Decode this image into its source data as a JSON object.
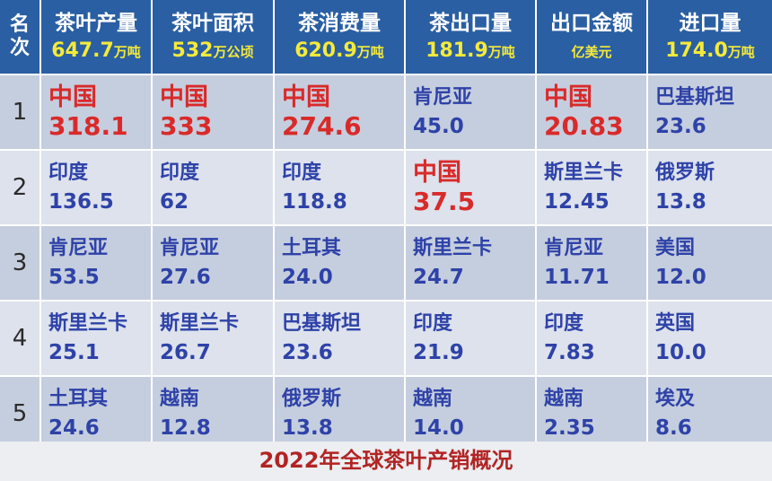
{
  "header": {
    "rank": [
      "名",
      "次"
    ],
    "columns": [
      {
        "name": "茶叶产量",
        "num": "647.7",
        "unit": "万吨"
      },
      {
        "name": "茶叶面积",
        "num": "532",
        "unit": "万公顷"
      },
      {
        "name": "茶消费量",
        "num": "620.9",
        "unit": "万吨"
      },
      {
        "name": "茶出口量",
        "num": "181.9",
        "unit": "万吨"
      },
      {
        "name": "出口金额",
        "num": "",
        "unit": "亿美元"
      },
      {
        "name": "进口量",
        "num": "174.0",
        "unit": "万吨"
      }
    ]
  },
  "rows": [
    {
      "rank": "1",
      "cells": [
        {
          "country": "中国",
          "value": "318.1",
          "highlight": true
        },
        {
          "country": "中国",
          "value": "333",
          "highlight": true
        },
        {
          "country": "中国",
          "value": "274.6",
          "highlight": true
        },
        {
          "country": "肯尼亚",
          "value": "45.0",
          "highlight": false
        },
        {
          "country": "中国",
          "value": "20.83",
          "highlight": true
        },
        {
          "country": "巴基斯坦",
          "value": "23.6",
          "highlight": false
        }
      ]
    },
    {
      "rank": "2",
      "cells": [
        {
          "country": "印度",
          "value": "136.5",
          "highlight": false
        },
        {
          "country": "印度",
          "value": "62",
          "highlight": false
        },
        {
          "country": "印度",
          "value": "118.8",
          "highlight": false
        },
        {
          "country": "中国",
          "value": "37.5",
          "highlight": true
        },
        {
          "country": "斯里兰卡",
          "value": "12.45",
          "highlight": false
        },
        {
          "country": "俄罗斯",
          "value": "13.8",
          "highlight": false
        }
      ]
    },
    {
      "rank": "3",
      "cells": [
        {
          "country": "肯尼亚",
          "value": "53.5",
          "highlight": false
        },
        {
          "country": "肯尼亚",
          "value": "27.6",
          "highlight": false
        },
        {
          "country": "土耳其",
          "value": "24.0",
          "highlight": false
        },
        {
          "country": "斯里兰卡",
          "value": "24.7",
          "highlight": false
        },
        {
          "country": "肯尼亚",
          "value": "11.71",
          "highlight": false
        },
        {
          "country": "美国",
          "value": "12.0",
          "highlight": false
        }
      ]
    },
    {
      "rank": "4",
      "cells": [
        {
          "country": "斯里兰卡",
          "value": "25.1",
          "highlight": false
        },
        {
          "country": "斯里兰卡",
          "value": "26.7",
          "highlight": false
        },
        {
          "country": "巴基斯坦",
          "value": "23.6",
          "highlight": false
        },
        {
          "country": "印度",
          "value": "21.9",
          "highlight": false
        },
        {
          "country": "印度",
          "value": "7.83",
          "highlight": false
        },
        {
          "country": "英国",
          "value": "10.0",
          "highlight": false
        }
      ]
    },
    {
      "rank": "5",
      "cells": [
        {
          "country": "土耳其",
          "value": "24.6",
          "highlight": false
        },
        {
          "country": "越南",
          "value": "12.8",
          "highlight": false
        },
        {
          "country": "俄罗斯",
          "value": "13.8",
          "highlight": false
        },
        {
          "country": "越南",
          "value": "14.0",
          "highlight": false
        },
        {
          "country": "越南",
          "value": "2.35",
          "highlight": false
        },
        {
          "country": "埃及",
          "value": "8.6",
          "highlight": false
        }
      ]
    }
  ],
  "caption": "2022年全球茶叶产销概况",
  "colors": {
    "header_bg": "#2a5fa3",
    "header_text": "#ffffff",
    "header_sub": "#f5ea3a",
    "country_blue": "#2e42a8",
    "highlight_red": "#d92a2a",
    "caption_red": "#b22424"
  }
}
